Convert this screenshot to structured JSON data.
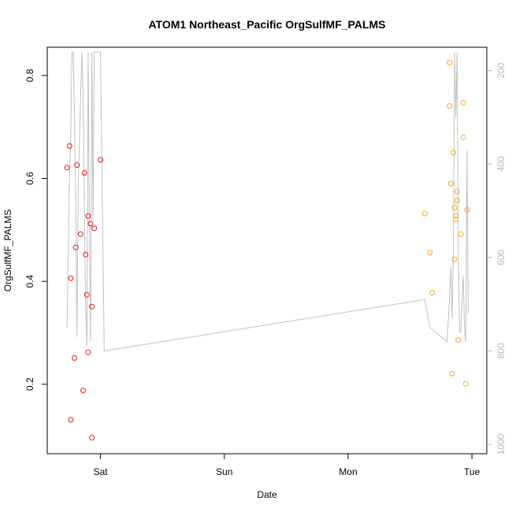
{
  "chart_data": {
    "type": "scatter",
    "title": "ATOM1 Northeast_Pacific OrgSulfMF_PALMS",
    "xlabel": "Date",
    "ylabel": "OrgSulfMF_PALMS",
    "x_tick_labels": [
      "Sat",
      "Sun",
      "Mon",
      "Tue"
    ],
    "x_tick_days": [
      1,
      2,
      3,
      4
    ],
    "xlim_days": [
      0.57,
      4.12
    ],
    "ylim": [
      0.065,
      0.855
    ],
    "y_ticks": [
      0.2,
      0.4,
      0.6,
      0.8
    ],
    "y2_ticks": [
      200,
      400,
      600,
      800,
      1000
    ],
    "y2lim": [
      1020,
      150
    ],
    "y2_reversed": true,
    "grid": false,
    "series": [
      {
        "color": "#e41a1c",
        "points": [
          {
            "x": 0.73,
            "y": 0.621
          },
          {
            "x": 0.75,
            "y": 0.663
          },
          {
            "x": 0.76,
            "y": 0.406
          },
          {
            "x": 0.76,
            "y": 0.131
          },
          {
            "x": 0.79,
            "y": 0.251
          },
          {
            "x": 0.8,
            "y": 0.466
          },
          {
            "x": 0.81,
            "y": 0.626
          },
          {
            "x": 0.84,
            "y": 0.492
          },
          {
            "x": 0.86,
            "y": 0.188
          },
          {
            "x": 0.87,
            "y": 0.611
          },
          {
            "x": 0.88,
            "y": 0.452
          },
          {
            "x": 0.89,
            "y": 0.374
          },
          {
            "x": 0.9,
            "y": 0.262
          },
          {
            "x": 0.9,
            "y": 0.527
          },
          {
            "x": 0.92,
            "y": 0.512
          },
          {
            "x": 0.93,
            "y": 0.351
          },
          {
            "x": 0.93,
            "y": 0.096
          },
          {
            "x": 0.95,
            "y": 0.503
          },
          {
            "x": 1.0,
            "y": 0.636
          }
        ]
      },
      {
        "color": "#f5a623",
        "points": [
          {
            "x": 3.62,
            "y": 0.532
          },
          {
            "x": 3.66,
            "y": 0.456
          },
          {
            "x": 3.68,
            "y": 0.378
          },
          {
            "x": 3.82,
            "y": 0.825
          },
          {
            "x": 3.82,
            "y": 0.741
          },
          {
            "x": 3.83,
            "y": 0.59
          },
          {
            "x": 3.84,
            "y": 0.221
          },
          {
            "x": 3.85,
            "y": 0.65
          },
          {
            "x": 3.86,
            "y": 0.443
          },
          {
            "x": 3.86,
            "y": 0.543
          },
          {
            "x": 3.87,
            "y": 0.521
          },
          {
            "x": 3.87,
            "y": 0.527
          },
          {
            "x": 3.88,
            "y": 0.557
          },
          {
            "x": 3.88,
            "y": 0.575
          },
          {
            "x": 3.89,
            "y": 0.286
          },
          {
            "x": 3.91,
            "y": 0.492
          },
          {
            "x": 3.93,
            "y": 0.747
          },
          {
            "x": 3.93,
            "y": 0.68
          },
          {
            "x": 3.95,
            "y": 0.201
          },
          {
            "x": 3.96,
            "y": 0.539
          }
        ]
      },
      {
        "color": "#c0c0c0",
        "axis": "right",
        "line": [
          {
            "x": 0.73,
            "y": 750
          },
          {
            "x": 0.75,
            "y": 420
          },
          {
            "x": 0.76,
            "y": 330
          },
          {
            "x": 0.77,
            "y": 160
          },
          {
            "x": 0.78,
            "y": 160
          },
          {
            "x": 0.79,
            "y": 300
          },
          {
            "x": 0.8,
            "y": 500
          },
          {
            "x": 0.81,
            "y": 770
          },
          {
            "x": 0.82,
            "y": 450
          },
          {
            "x": 0.84,
            "y": 250
          },
          {
            "x": 0.85,
            "y": 160
          },
          {
            "x": 0.86,
            "y": 260
          },
          {
            "x": 0.87,
            "y": 500
          },
          {
            "x": 0.88,
            "y": 710
          },
          {
            "x": 0.89,
            "y": 790
          },
          {
            "x": 0.9,
            "y": 160
          },
          {
            "x": 0.91,
            "y": 520
          },
          {
            "x": 0.92,
            "y": 780
          },
          {
            "x": 0.93,
            "y": 160
          },
          {
            "x": 0.94,
            "y": 520
          },
          {
            "x": 0.95,
            "y": 160
          },
          {
            "x": 0.97,
            "y": 160
          },
          {
            "x": 0.99,
            "y": 160
          },
          {
            "x": 1.0,
            "y": 160
          },
          {
            "x": 1.03,
            "y": 800
          },
          {
            "x": 3.62,
            "y": 690
          },
          {
            "x": 3.66,
            "y": 750
          },
          {
            "x": 3.8,
            "y": 780
          },
          {
            "x": 3.82,
            "y": 680
          },
          {
            "x": 3.83,
            "y": 620
          },
          {
            "x": 3.84,
            "y": 730
          },
          {
            "x": 3.85,
            "y": 580
          },
          {
            "x": 3.86,
            "y": 160
          },
          {
            "x": 3.87,
            "y": 300
          },
          {
            "x": 3.88,
            "y": 160
          },
          {
            "x": 3.89,
            "y": 580
          },
          {
            "x": 3.9,
            "y": 760
          },
          {
            "x": 3.91,
            "y": 760
          },
          {
            "x": 3.92,
            "y": 690
          },
          {
            "x": 3.93,
            "y": 640
          },
          {
            "x": 3.94,
            "y": 750
          },
          {
            "x": 3.95,
            "y": 780
          },
          {
            "x": 3.96,
            "y": 370
          },
          {
            "x": 3.97,
            "y": 720
          }
        ]
      }
    ]
  }
}
